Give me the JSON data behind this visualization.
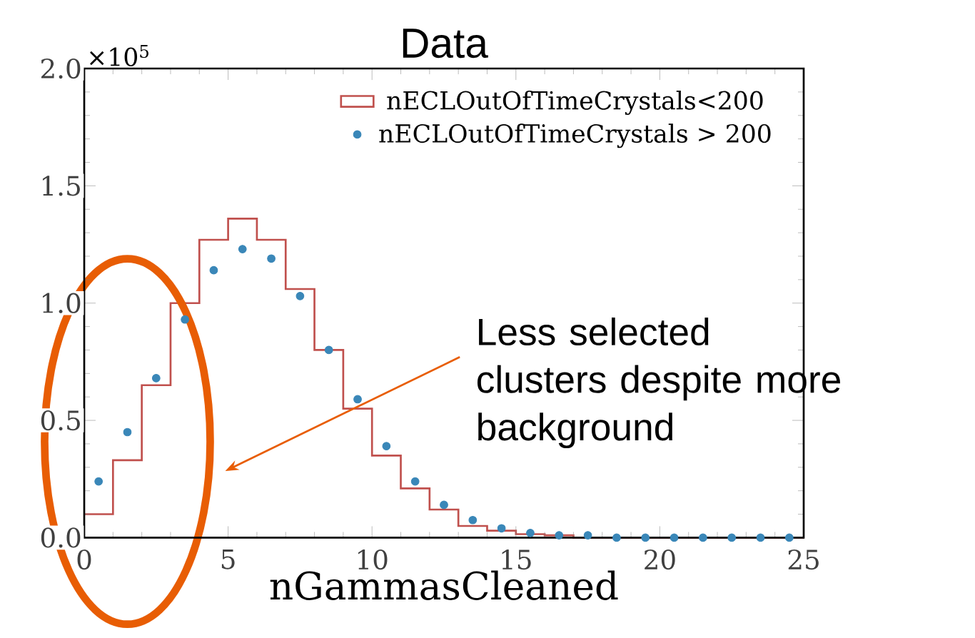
{
  "chart_data": {
    "type": "histogram",
    "title": "Data",
    "xlabel": "nGammasCleaned",
    "bins": [
      0,
      1,
      2,
      3,
      4,
      5,
      6,
      7,
      8,
      9,
      10,
      11,
      12,
      13,
      14,
      15,
      16,
      17,
      18,
      19,
      20,
      21,
      22,
      23,
      24,
      25
    ],
    "series": [
      {
        "name": "nECLOutOfTimeCrystals<200",
        "color": "#c0504d",
        "values": [
          0.1,
          0.33,
          0.65,
          1.0,
          1.27,
          1.36,
          1.27,
          1.06,
          0.8,
          0.55,
          0.35,
          0.21,
          0.12,
          0.05,
          0.03,
          0.015,
          0.01,
          0,
          0,
          0,
          0,
          0,
          0,
          0,
          0
        ]
      },
      {
        "type": "scatter",
        "name": "nECLOutOfTimeCrystals > 200",
        "color": "#3a87b8",
        "x": [
          0.5,
          1.5,
          2.5,
          3.5,
          4.5,
          5.5,
          6.5,
          7.5,
          8.5,
          9.5,
          10.5,
          11.5,
          12.5,
          13.5,
          14.5,
          15.5,
          16.5,
          17.5,
          18.5,
          19.5,
          20.5,
          21.5,
          22.5,
          23.5,
          24.5
        ],
        "values": [
          0.24,
          0.45,
          0.68,
          0.93,
          1.14,
          1.23,
          1.19,
          1.03,
          0.8,
          0.59,
          0.39,
          0.24,
          0.14,
          0.075,
          0.04,
          0.02,
          0.01,
          0.01,
          0,
          0,
          0,
          0,
          0,
          0,
          0
        ]
      }
    ],
    "marker": "circle",
    "xlim": [
      0,
      25
    ],
    "xticks": [
      0,
      5,
      10,
      15,
      20,
      25
    ],
    "ylim": [
      0,
      2.0
    ],
    "yticks": [
      {
        "value": 0,
        "label": "0.0"
      },
      {
        "value": 0.5,
        "label": "0.5"
      },
      {
        "value": 1.0,
        "label": "1.0"
      },
      {
        "value": 1.5,
        "label": "1.5"
      },
      {
        "value": 2.0,
        "label": "2.0"
      }
    ],
    "legend": "top right",
    "annotations": [
      "×10$^{5}$",
      "Less selected clusters despite more background"
    ]
  }
}
